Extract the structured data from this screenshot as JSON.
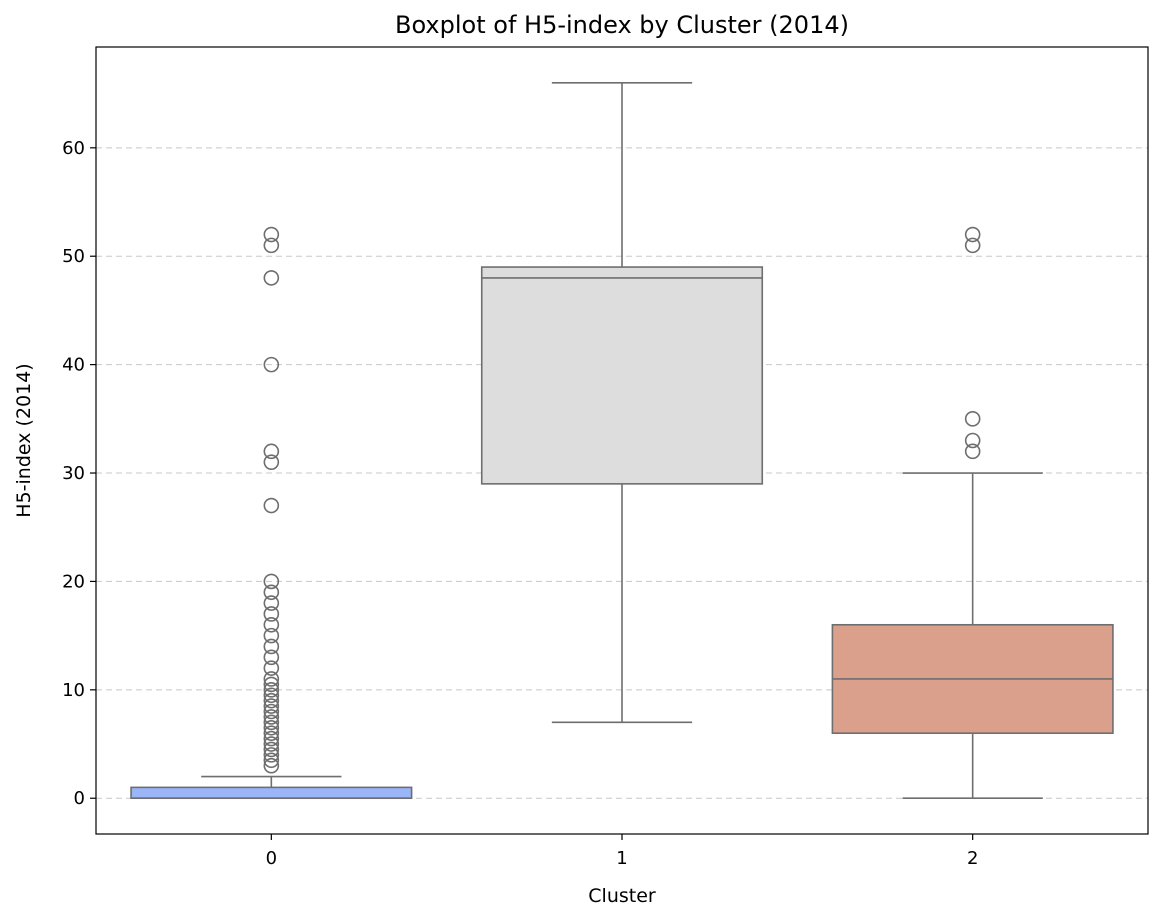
{
  "chart_data": {
    "type": "box",
    "title": "Boxplot of H5-index by Cluster (2014)",
    "xlabel": "Cluster",
    "ylabel": "H5-index (2014)",
    "categories": [
      "0",
      "1",
      "2"
    ],
    "ylim": [
      -3.3,
      69.3
    ],
    "yticks": [
      0,
      10,
      20,
      30,
      40,
      50,
      60
    ],
    "grid": "horizontal-dashed",
    "boxes": [
      {
        "category": "0",
        "color": "#9bb5f9",
        "whislo": 0,
        "q1": 0,
        "median": 0,
        "q3": 1,
        "whishi": 2,
        "fliers": [
          3,
          3.5,
          4,
          4.5,
          5,
          5.5,
          6,
          6.5,
          7,
          7.5,
          8,
          8.5,
          9,
          9.5,
          10,
          10.5,
          11,
          12,
          13,
          14,
          15,
          16,
          17,
          18,
          19,
          20,
          27,
          31,
          32,
          40,
          48,
          51,
          52
        ]
      },
      {
        "category": "1",
        "color": "#dddddd",
        "whislo": 7,
        "q1": 29,
        "median": 48,
        "q3": 49,
        "whishi": 66,
        "fliers": []
      },
      {
        "category": "2",
        "color": "#dba08b",
        "whislo": 0,
        "q1": 6,
        "median": 11,
        "q3": 16,
        "whishi": 30,
        "fliers": [
          32,
          33,
          35,
          51,
          52
        ]
      }
    ]
  }
}
